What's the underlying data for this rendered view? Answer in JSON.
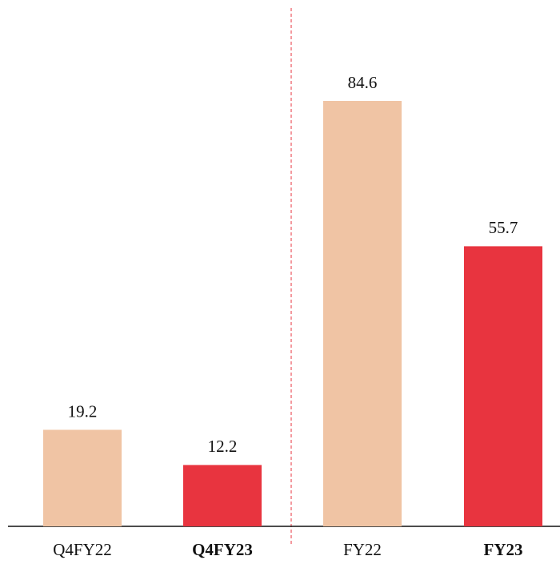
{
  "chart_data": {
    "type": "bar",
    "categories": [
      "Q4FY22",
      "Q4FY23",
      "FY22",
      "FY23"
    ],
    "values": [
      19.2,
      12.2,
      84.6,
      55.7
    ],
    "colors": [
      "#f0c4a4",
      "#e8343f",
      "#f0c4a4",
      "#e8343f"
    ],
    "bold": [
      false,
      true,
      false,
      true
    ]
  }
}
